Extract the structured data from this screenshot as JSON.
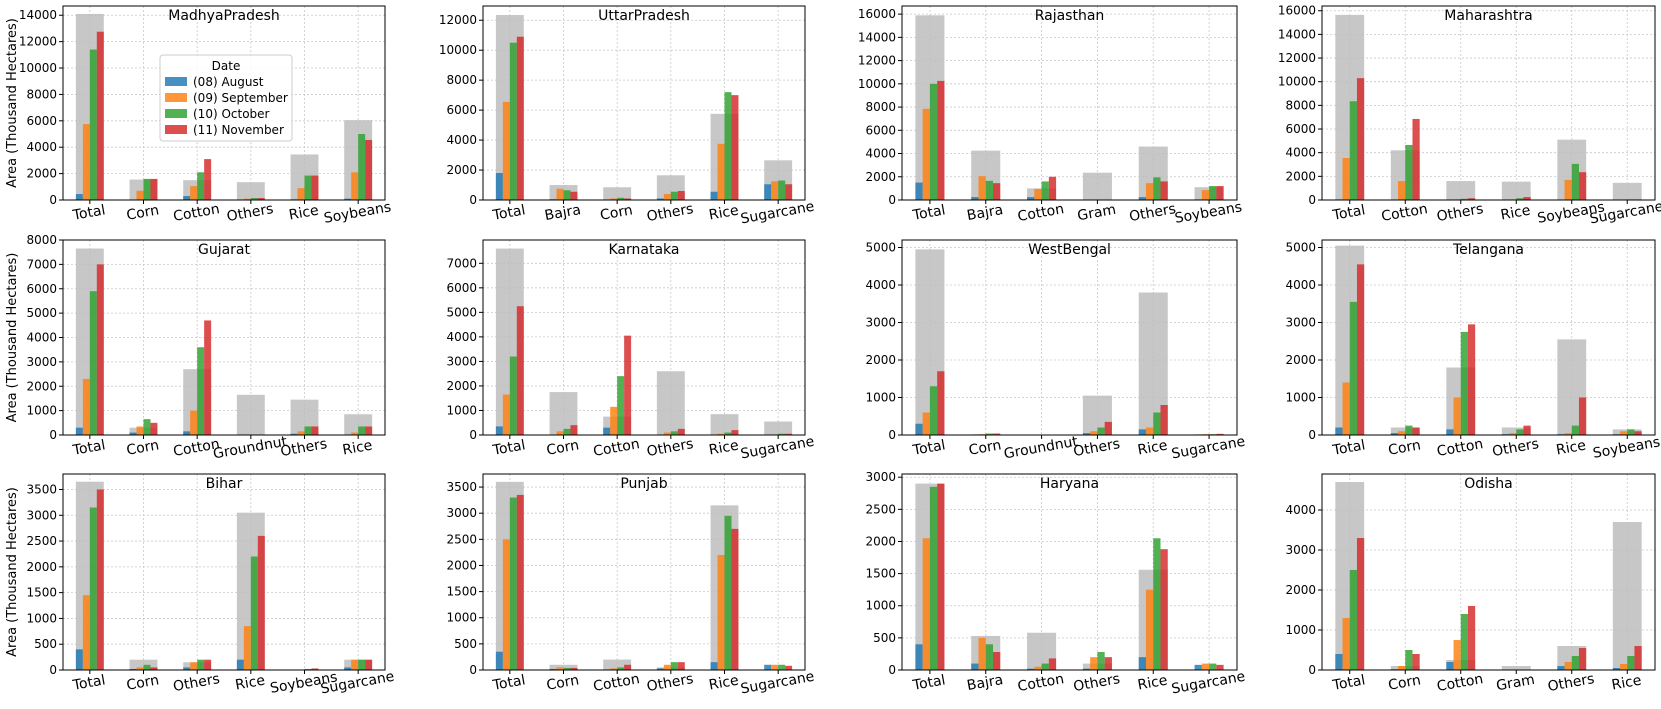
{
  "figure": {
    "ylabel": "Area (Thousand Hectares)",
    "legend": {
      "title": "Date",
      "entries": [
        "(08) August",
        "(09) September",
        "(10) October",
        "(11) November"
      ],
      "placement": "inside MadhyaPradesh panel"
    },
    "colors": {
      "series": [
        "#1f77b4",
        "#ff7f0e",
        "#2ca02c",
        "#d62728"
      ],
      "reference_bar": "#bdbdbd"
    }
  },
  "chart_data": [
    {
      "type": "bar",
      "title": "MadhyaPradesh",
      "grid": true,
      "categories": [
        "Total",
        "Corn",
        "Cotton",
        "Others",
        "Rice",
        "Soybeans"
      ],
      "reference": [
        14100,
        1550,
        1500,
        1350,
        3450,
        6050
      ],
      "series": [
        {
          "name": "(08) August",
          "values": [
            450,
            20,
            300,
            20,
            50,
            100
          ]
        },
        {
          "name": "(09) September",
          "values": [
            5750,
            700,
            1050,
            100,
            900,
            2100
          ]
        },
        {
          "name": "(10) October",
          "values": [
            11400,
            1600,
            2100,
            150,
            1850,
            5000
          ]
        },
        {
          "name": "(11) November",
          "values": [
            12750,
            1600,
            3100,
            150,
            1850,
            4550
          ]
        }
      ],
      "yticks": [
        0,
        2000,
        4000,
        6000,
        8000,
        10000,
        12000,
        14000
      ],
      "ylim": [
        0,
        14700
      ]
    },
    {
      "type": "bar",
      "title": "UttarPradesh",
      "grid": true,
      "categories": [
        "Total",
        "Bajra",
        "Corn",
        "Others",
        "Rice",
        "Sugarcane"
      ],
      "reference": [
        12350,
        1000,
        850,
        1650,
        5750,
        2650
      ],
      "series": [
        {
          "name": "(08) August",
          "values": [
            1800,
            50,
            20,
            100,
            550,
            1050
          ]
        },
        {
          "name": "(09) September",
          "values": [
            6550,
            750,
            100,
            400,
            3750,
            1250
          ]
        },
        {
          "name": "(10) October",
          "values": [
            10500,
            650,
            150,
            550,
            7200,
            1300
          ]
        },
        {
          "name": "(11) November",
          "values": [
            10900,
            550,
            100,
            600,
            7000,
            1050
          ]
        }
      ],
      "yticks": [
        0,
        2000,
        4000,
        6000,
        8000,
        10000,
        12000
      ],
      "ylim": [
        0,
        12950
      ]
    },
    {
      "type": "bar",
      "title": "Rajasthan",
      "grid": true,
      "categories": [
        "Total",
        "Bajra",
        "Cotton",
        "Gram",
        "Others",
        "Soybeans"
      ],
      "reference": [
        15900,
        4250,
        1000,
        2350,
        4600,
        1100
      ],
      "series": [
        {
          "name": "(08) August",
          "values": [
            1500,
            250,
            250,
            0,
            250,
            50
          ]
        },
        {
          "name": "(09) September",
          "values": [
            7850,
            2050,
            950,
            0,
            1450,
            850
          ]
        },
        {
          "name": "(10) October",
          "values": [
            10000,
            1650,
            1600,
            0,
            1950,
            1200
          ]
        },
        {
          "name": "(11) November",
          "values": [
            10250,
            1450,
            2000,
            0,
            1600,
            1200
          ]
        }
      ],
      "yticks": [
        0,
        2000,
        4000,
        6000,
        8000,
        10000,
        12000,
        14000,
        16000
      ],
      "ylim": [
        0,
        16700
      ]
    },
    {
      "type": "bar",
      "title": "Maharashtra",
      "grid": true,
      "categories": [
        "Total",
        "Cotton",
        "Others",
        "Rice",
        "Soybeans",
        "Sugarcane"
      ],
      "reference": [
        15650,
        4200,
        1600,
        1550,
        5100,
        1450
      ],
      "series": [
        {
          "name": "(08) August",
          "values": [
            50,
            20,
            10,
            10,
            30,
            0
          ]
        },
        {
          "name": "(09) September",
          "values": [
            3550,
            1600,
            50,
            50,
            1700,
            20
          ]
        },
        {
          "name": "(10) October",
          "values": [
            8350,
            4650,
            100,
            150,
            3050,
            50
          ]
        },
        {
          "name": "(11) November",
          "values": [
            10300,
            6850,
            150,
            250,
            2350,
            50
          ]
        }
      ],
      "yticks": [
        0,
        2000,
        4000,
        6000,
        8000,
        10000,
        12000,
        14000,
        16000
      ],
      "ylim": [
        0,
        16400
      ]
    },
    {
      "type": "bar",
      "title": "Gujarat",
      "grid": true,
      "categories": [
        "Total",
        "Corn",
        "Cotton",
        "Groundnut",
        "Others",
        "Rice"
      ],
      "reference": [
        7650,
        300,
        2700,
        1650,
        1450,
        850
      ],
      "series": [
        {
          "name": "(08) August",
          "values": [
            300,
            100,
            150,
            0,
            50,
            20
          ]
        },
        {
          "name": "(09) September",
          "values": [
            2300,
            350,
            1000,
            0,
            150,
            100
          ]
        },
        {
          "name": "(10) October",
          "values": [
            5900,
            650,
            3600,
            0,
            350,
            350
          ]
        },
        {
          "name": "(11) November",
          "values": [
            7000,
            500,
            4700,
            0,
            350,
            350
          ]
        }
      ],
      "yticks": [
        0,
        1000,
        2000,
        3000,
        4000,
        5000,
        6000,
        7000,
        8000
      ],
      "ylim": [
        0,
        8000
      ]
    },
    {
      "type": "bar",
      "title": "Karnataka",
      "grid": true,
      "categories": [
        "Total",
        "Corn",
        "Cotton",
        "Others",
        "Rice",
        "Sugarcane"
      ],
      "reference": [
        7600,
        1750,
        750,
        2600,
        850,
        550
      ],
      "series": [
        {
          "name": "(08) August",
          "values": [
            350,
            20,
            300,
            20,
            20,
            20
          ]
        },
        {
          "name": "(09) September",
          "values": [
            1650,
            150,
            1150,
            100,
            50,
            20
          ]
        },
        {
          "name": "(10) October",
          "values": [
            3200,
            250,
            2400,
            150,
            100,
            50
          ]
        },
        {
          "name": "(11) November",
          "values": [
            5250,
            400,
            4050,
            250,
            200,
            50
          ]
        }
      ],
      "yticks": [
        0,
        1000,
        2000,
        3000,
        4000,
        5000,
        6000,
        7000
      ],
      "ylim": [
        0,
        7950
      ]
    },
    {
      "type": "bar",
      "title": "WestBengal",
      "grid": true,
      "categories": [
        "Total",
        "Corn",
        "Groundnut",
        "Others",
        "Rice",
        "Sugarcane"
      ],
      "reference": [
        4950,
        20,
        0,
        1050,
        3800,
        20
      ],
      "series": [
        {
          "name": "(08) August",
          "values": [
            300,
            10,
            0,
            50,
            150,
            10
          ]
        },
        {
          "name": "(09) September",
          "values": [
            600,
            20,
            0,
            100,
            200,
            20
          ]
        },
        {
          "name": "(10) October",
          "values": [
            1300,
            40,
            0,
            200,
            600,
            20
          ]
        },
        {
          "name": "(11) November",
          "values": [
            1700,
            40,
            0,
            350,
            800,
            30
          ]
        }
      ],
      "yticks": [
        0,
        1000,
        2000,
        3000,
        4000,
        5000
      ],
      "ylim": [
        0,
        5200
      ]
    },
    {
      "type": "bar",
      "title": "Telangana",
      "grid": true,
      "categories": [
        "Total",
        "Corn",
        "Cotton",
        "Others",
        "Rice",
        "Soybeans"
      ],
      "reference": [
        5050,
        200,
        1800,
        200,
        2550,
        150
      ],
      "series": [
        {
          "name": "(08) August",
          "values": [
            200,
            50,
            150,
            20,
            20,
            20
          ]
        },
        {
          "name": "(09) September",
          "values": [
            1400,
            100,
            1000,
            50,
            50,
            100
          ]
        },
        {
          "name": "(10) October",
          "values": [
            3550,
            250,
            2750,
            150,
            250,
            150
          ]
        },
        {
          "name": "(11) November",
          "values": [
            4550,
            200,
            2950,
            250,
            1000,
            100
          ]
        }
      ],
      "yticks": [
        0,
        1000,
        2000,
        3000,
        4000,
        5000
      ],
      "ylim": [
        0,
        5200
      ]
    },
    {
      "type": "bar",
      "title": "Bihar",
      "grid": true,
      "categories": [
        "Total",
        "Corn",
        "Others",
        "Rice",
        "Soybeans",
        "Sugarcane"
      ],
      "reference": [
        3650,
        200,
        150,
        3050,
        0,
        200
      ],
      "series": [
        {
          "name": "(08) August",
          "values": [
            400,
            20,
            50,
            200,
            0,
            50
          ]
        },
        {
          "name": "(09) September",
          "values": [
            1450,
            50,
            150,
            850,
            10,
            200
          ]
        },
        {
          "name": "(10) October",
          "values": [
            3150,
            100,
            200,
            2200,
            20,
            200
          ]
        },
        {
          "name": "(11) November",
          "values": [
            3500,
            50,
            200,
            2600,
            30,
            200
          ]
        }
      ],
      "yticks": [
        0,
        500,
        1000,
        1500,
        2000,
        2500,
        3000,
        3500
      ],
      "ylim": [
        0,
        3800
      ]
    },
    {
      "type": "bar",
      "title": "Punjab",
      "grid": true,
      "categories": [
        "Total",
        "Corn",
        "Cotton",
        "Others",
        "Rice",
        "Sugarcane"
      ],
      "reference": [
        3600,
        100,
        200,
        50,
        3150,
        0
      ],
      "series": [
        {
          "name": "(08) August",
          "values": [
            350,
            20,
            10,
            30,
            150,
            100
          ]
        },
        {
          "name": "(09) September",
          "values": [
            2500,
            50,
            30,
            100,
            2200,
            100
          ]
        },
        {
          "name": "(10) October",
          "values": [
            3300,
            40,
            50,
            150,
            2950,
            100
          ]
        },
        {
          "name": "(11) November",
          "values": [
            3350,
            40,
            100,
            150,
            2700,
            80
          ]
        }
      ],
      "yticks": [
        0,
        500,
        1000,
        1500,
        2000,
        2500,
        3000,
        3500
      ],
      "ylim": [
        0,
        3750
      ]
    },
    {
      "type": "bar",
      "title": "Haryana",
      "grid": true,
      "categories": [
        "Total",
        "Bajra",
        "Cotton",
        "Others",
        "Rice",
        "Sugarcane"
      ],
      "reference": [
        2900,
        530,
        580,
        100,
        1560,
        0
      ],
      "series": [
        {
          "name": "(08) August",
          "values": [
            400,
            100,
            20,
            20,
            200,
            80
          ]
        },
        {
          "name": "(09) September",
          "values": [
            2050,
            500,
            50,
            200,
            1250,
            100
          ]
        },
        {
          "name": "(10) October",
          "values": [
            2850,
            400,
            100,
            280,
            2050,
            100
          ]
        },
        {
          "name": "(11) November",
          "values": [
            2900,
            280,
            180,
            200,
            1880,
            80
          ]
        }
      ],
      "yticks": [
        0,
        500,
        1000,
        1500,
        2000,
        2500,
        3000
      ],
      "ylim": [
        0,
        3050
      ]
    },
    {
      "type": "bar",
      "title": "Odisha",
      "grid": true,
      "categories": [
        "Total",
        "Corn",
        "Cotton",
        "Gram",
        "Others",
        "Rice"
      ],
      "reference": [
        4700,
        100,
        250,
        100,
        600,
        3700
      ],
      "series": [
        {
          "name": "(08) August",
          "values": [
            400,
            20,
            200,
            0,
            100,
            50
          ]
        },
        {
          "name": "(09) September",
          "values": [
            1300,
            100,
            750,
            0,
            200,
            150
          ]
        },
        {
          "name": "(10) October",
          "values": [
            2500,
            500,
            1400,
            0,
            350,
            350
          ]
        },
        {
          "name": "(11) November",
          "values": [
            3300,
            400,
            1600,
            0,
            550,
            600
          ]
        }
      ],
      "yticks": [
        0,
        1000,
        2000,
        3000,
        4000
      ],
      "ylim": [
        0,
        4900
      ]
    }
  ]
}
